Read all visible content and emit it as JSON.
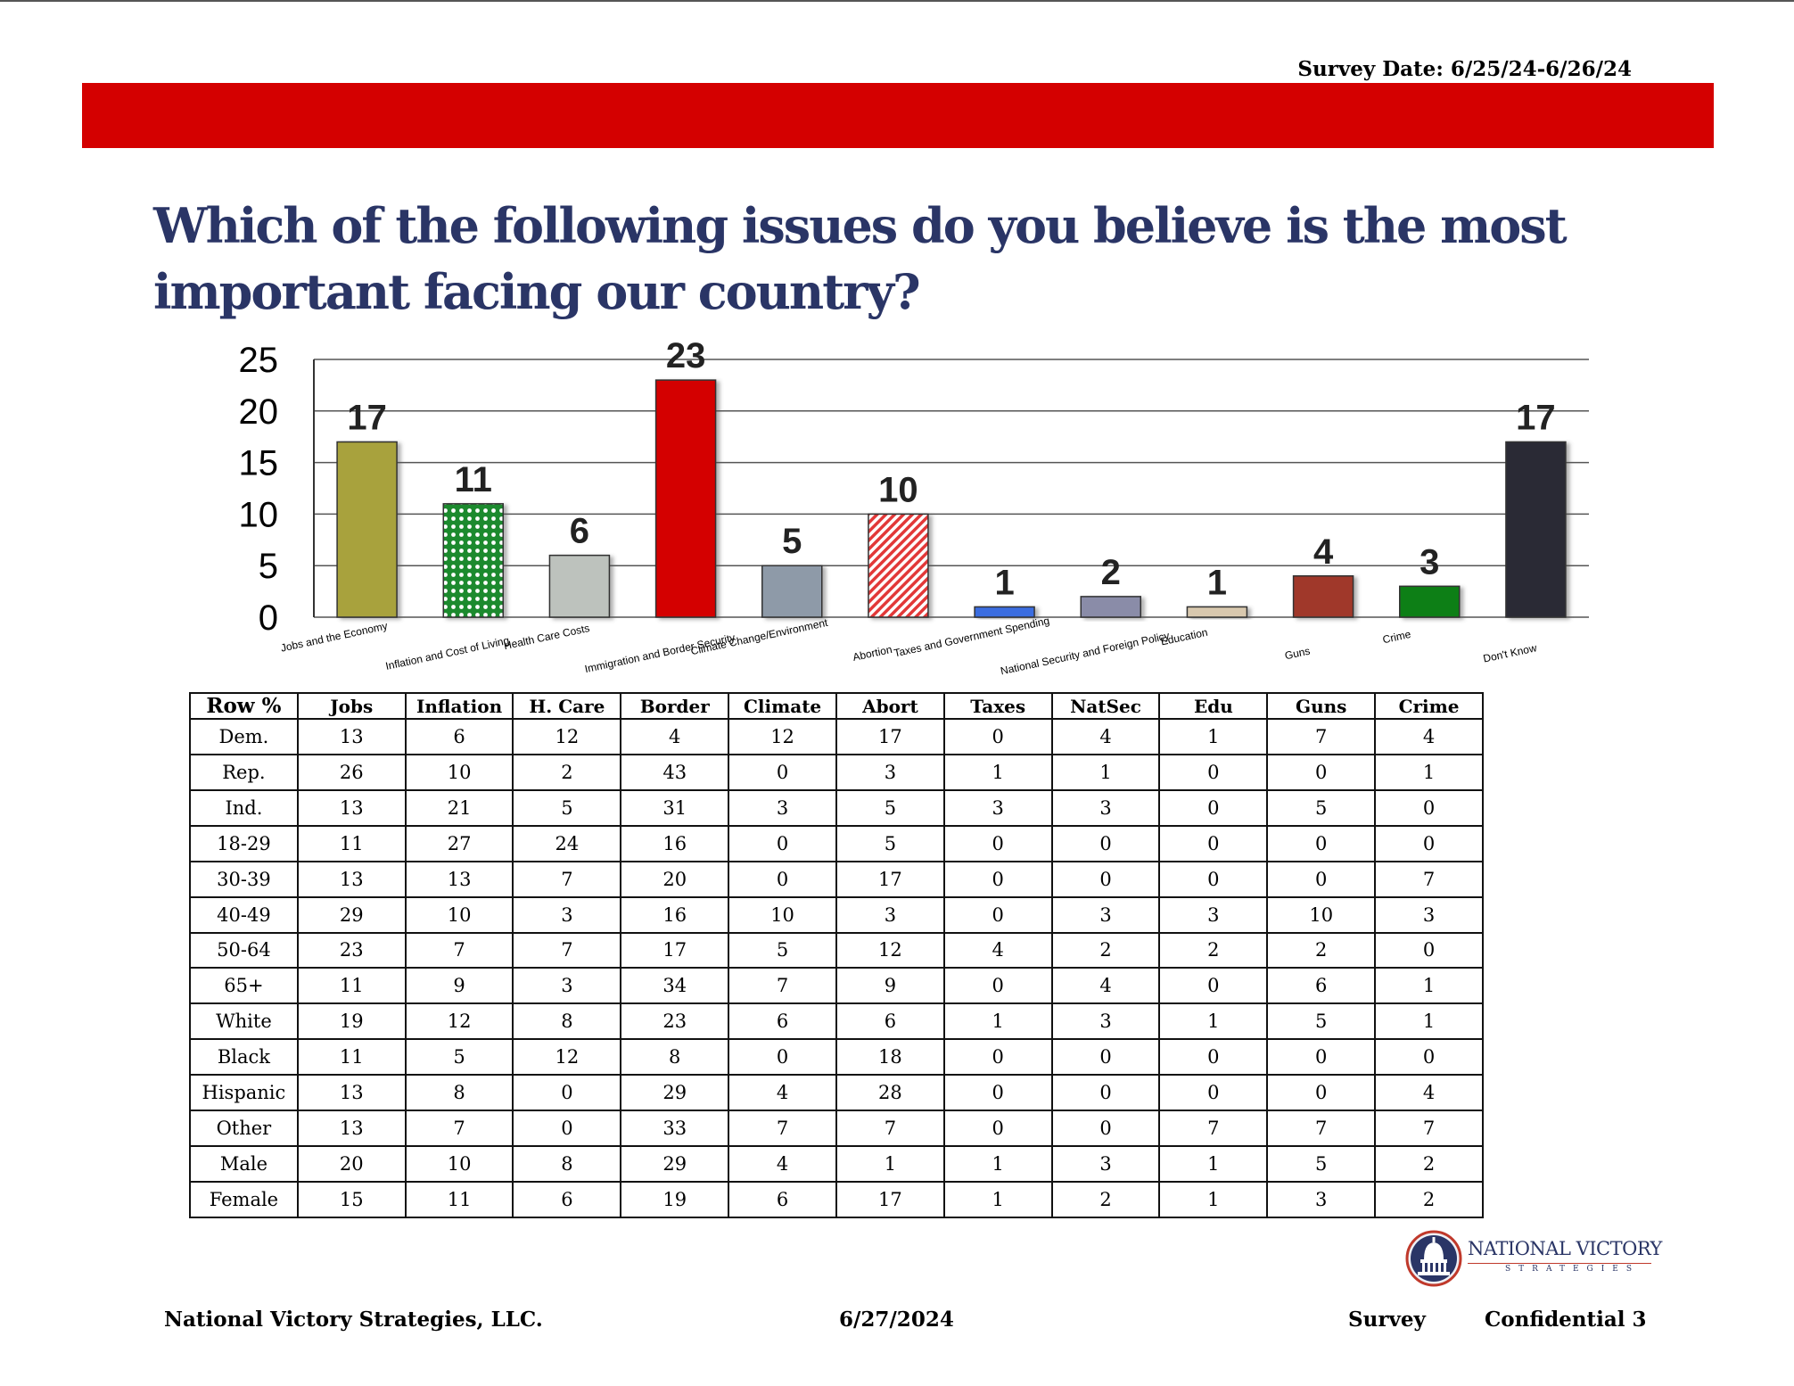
{
  "header": {
    "survey_date": "Survey Date: 6/25/24-6/26/24",
    "bar_color": "#d40000",
    "title": "Which of the following issues do you believe is the most important facing our country?"
  },
  "chart_data": {
    "type": "bar",
    "categories": [
      "Jobs and the Economy",
      "Inflation and Cost of Living",
      "Health Care Costs",
      "Immigration and Border Security",
      "Climate Change/Environment",
      "Abortion",
      "Taxes and Government Spending",
      "National Security and Foreign Policy",
      "Education",
      "Guns",
      "Crime",
      "Don't Know"
    ],
    "values": [
      17,
      11,
      6,
      23,
      5,
      10,
      1,
      2,
      1,
      4,
      3,
      17
    ],
    "ylim": [
      0,
      25
    ],
    "yticks": [
      0,
      5,
      10,
      15,
      20,
      25
    ],
    "grid": true,
    "data_labels": true,
    "bar_colors": [
      "#a8a23e",
      "#1e8a2e",
      "#bdc2bd",
      "#d40000",
      "#8e9aa8",
      "#e23838",
      "#3a6de0",
      "#8a8ca8",
      "#d8c8ae",
      "#a0392c",
      "#0f7f12",
      "#2a2c36"
    ],
    "bar_patterns": [
      "solid",
      "lattice",
      "solid",
      "solid",
      "solid",
      "diagonal",
      "solid",
      "solid",
      "solid",
      "solid",
      "solid",
      "solid"
    ]
  },
  "crosstab": {
    "corner": "Row %",
    "columns": [
      "Jobs",
      "Inflation",
      "H. Care",
      "Border",
      "Climate",
      "Abort",
      "Taxes",
      "NatSec",
      "Edu",
      "Guns",
      "Crime"
    ],
    "rows": [
      {
        "label": "Dem.",
        "values": [
          13,
          6,
          12,
          4,
          12,
          17,
          0,
          4,
          1,
          7,
          4
        ]
      },
      {
        "label": "Rep.",
        "values": [
          26,
          10,
          2,
          43,
          0,
          3,
          1,
          1,
          0,
          0,
          1
        ]
      },
      {
        "label": "Ind.",
        "values": [
          13,
          21,
          5,
          31,
          3,
          5,
          3,
          3,
          0,
          5,
          0
        ]
      },
      {
        "label": "18-29",
        "values": [
          11,
          27,
          24,
          16,
          0,
          5,
          0,
          0,
          0,
          0,
          0
        ]
      },
      {
        "label": "30-39",
        "values": [
          13,
          13,
          7,
          20,
          0,
          17,
          0,
          0,
          0,
          0,
          7
        ]
      },
      {
        "label": "40-49",
        "values": [
          29,
          10,
          3,
          16,
          10,
          3,
          0,
          3,
          3,
          10,
          3
        ]
      },
      {
        "label": "50-64",
        "values": [
          23,
          7,
          7,
          17,
          5,
          12,
          4,
          2,
          2,
          2,
          0
        ]
      },
      {
        "label": "65+",
        "values": [
          11,
          9,
          3,
          34,
          7,
          9,
          0,
          4,
          0,
          6,
          1
        ]
      },
      {
        "label": "White",
        "values": [
          19,
          12,
          8,
          23,
          6,
          6,
          1,
          3,
          1,
          5,
          1
        ]
      },
      {
        "label": "Black",
        "values": [
          11,
          5,
          12,
          8,
          0,
          18,
          0,
          0,
          0,
          0,
          0
        ]
      },
      {
        "label": "Hispanic",
        "values": [
          13,
          8,
          0,
          29,
          4,
          28,
          0,
          0,
          0,
          0,
          4
        ]
      },
      {
        "label": "Other",
        "values": [
          13,
          7,
          0,
          33,
          7,
          7,
          0,
          0,
          7,
          7,
          7
        ]
      },
      {
        "label": "Male",
        "values": [
          20,
          10,
          8,
          29,
          4,
          1,
          1,
          3,
          1,
          5,
          2
        ]
      },
      {
        "label": "Female",
        "values": [
          15,
          11,
          6,
          19,
          6,
          17,
          1,
          2,
          1,
          3,
          2
        ]
      }
    ]
  },
  "logo": {
    "name": "NATIONAL VICTORY",
    "sub": "STRATEGIES"
  },
  "footer": {
    "company": "National Victory Strategies, LLC.",
    "date": "6/27/2024",
    "survey": "Survey",
    "confidential": "Confidential 3"
  }
}
